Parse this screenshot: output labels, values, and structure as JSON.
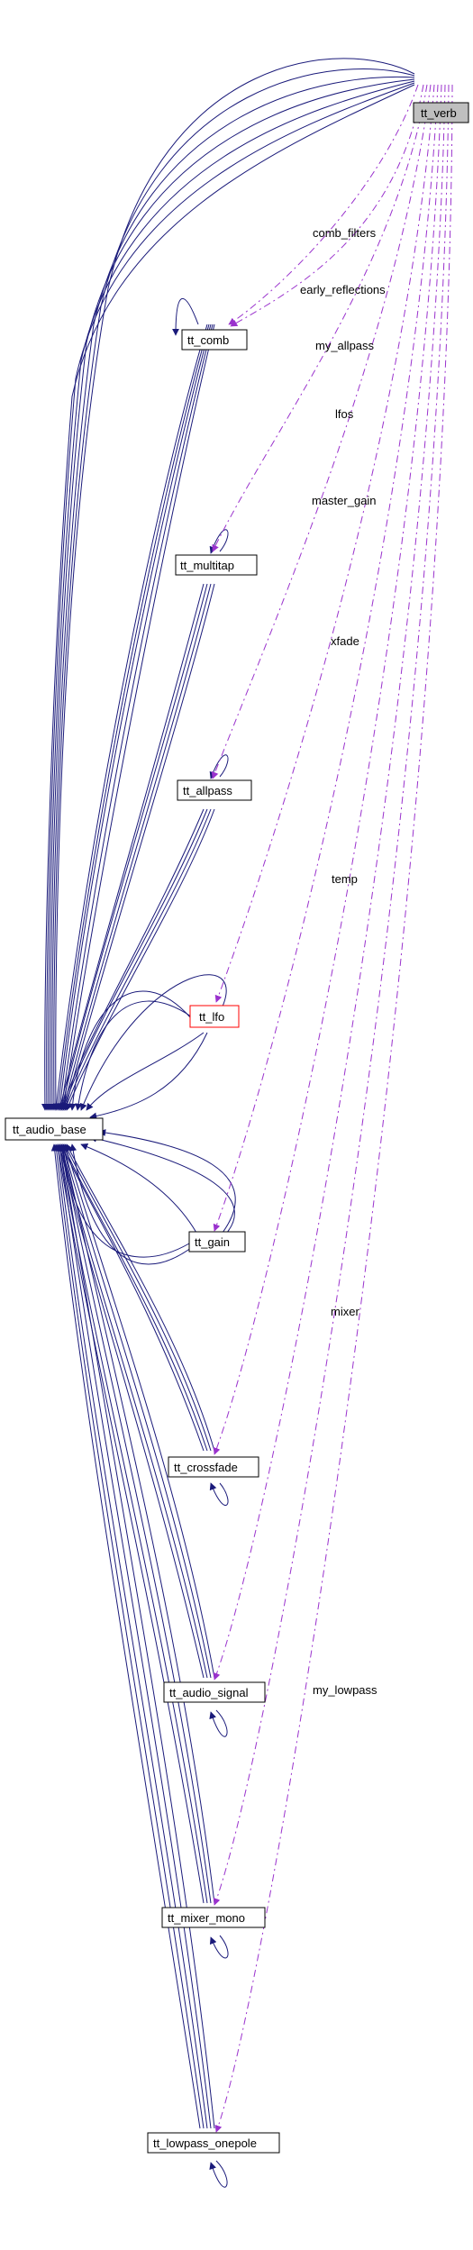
{
  "colors": {
    "inheritance_edge": "#1a1a7a",
    "usage_edge": "#9a32cd",
    "highlight_border": "#ff0000",
    "root_fill": "#bfbfbf",
    "node_fill": "#ffffff",
    "node_border": "#000000"
  },
  "nodes": {
    "verb": "tt_verb",
    "comb": "tt_comb",
    "multitap": "tt_multitap",
    "allpass": "tt_allpass",
    "lfo": "tt_lfo",
    "audio_base": "tt_audio_base",
    "gain": "tt_gain",
    "crossfade": "tt_crossfade",
    "audio_signal": "tt_audio_signal",
    "mixer_mono": "tt_mixer_mono",
    "lowpass_onepole": "tt_lowpass_onepole"
  },
  "edge_labels": {
    "comb_filters": "comb_filters",
    "early_reflections": "early_reflections",
    "my_allpass": "my_allpass",
    "lfos": "lfos",
    "master_gain": "master_gain",
    "xfade": "xfade",
    "temp": "temp",
    "mixer": "mixer",
    "my_lowpass": "my_lowpass"
  }
}
